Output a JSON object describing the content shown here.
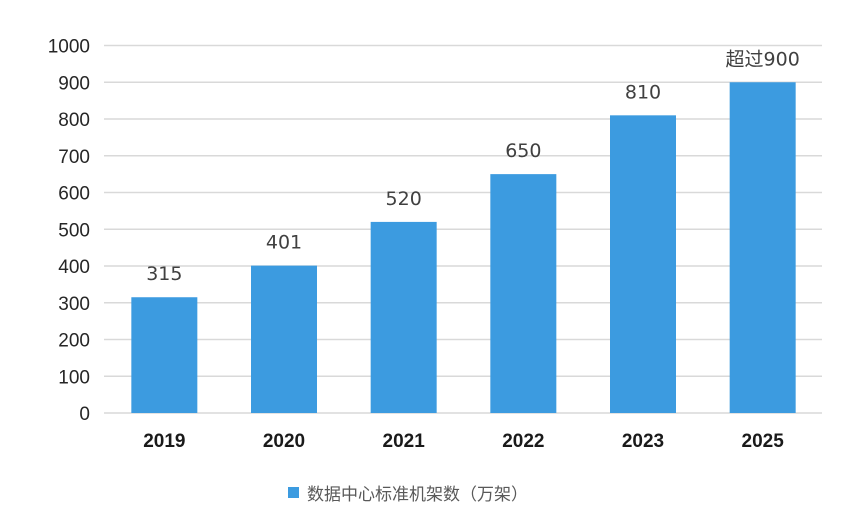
{
  "chart_data": {
    "type": "bar",
    "categories": [
      "2019",
      "2020",
      "2021",
      "2022",
      "2023",
      "2025"
    ],
    "series": [
      {
        "name": "数据中心标准机架数（万架）",
        "values": [
          315,
          401,
          520,
          650,
          810,
          900
        ],
        "data_labels": [
          "315",
          "401",
          "520",
          "650",
          "810",
          "超过900"
        ]
      }
    ],
    "ylim": [
      0,
      1000
    ],
    "yticks": [
      "0",
      "100",
      "200",
      "300",
      "400",
      "500",
      "600",
      "700",
      "800",
      "900",
      "1000"
    ],
    "grid": true,
    "legend": "bottom",
    "colors": {
      "bar": "#3c9be0",
      "grid": "#d9d9d9",
      "text": "#404040"
    }
  }
}
